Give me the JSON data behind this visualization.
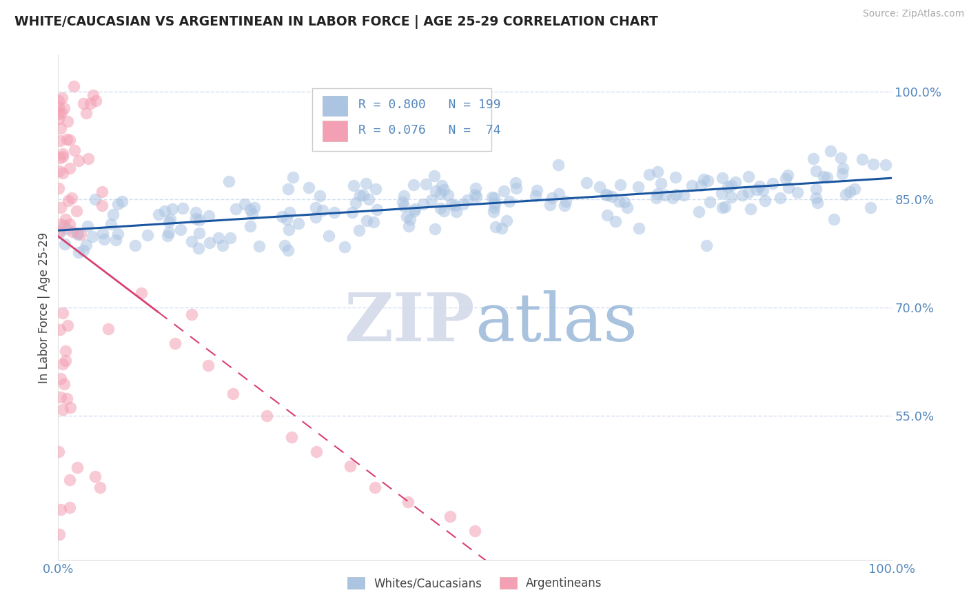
{
  "title": "WHITE/CAUCASIAN VS ARGENTINEAN IN LABOR FORCE | AGE 25-29 CORRELATION CHART",
  "source": "Source: ZipAtlas.com",
  "ylabel": "In Labor Force | Age 25-29",
  "xlim": [
    0.0,
    1.0
  ],
  "ylim": [
    0.35,
    1.05
  ],
  "yticks": [
    0.55,
    0.7,
    0.85,
    1.0
  ],
  "ytick_labels": [
    "55.0%",
    "70.0%",
    "85.0%",
    "100.0%"
  ],
  "xticks": [
    0.0,
    1.0
  ],
  "xtick_labels": [
    "0.0%",
    "100.0%"
  ],
  "blue_R": 0.8,
  "blue_N": 199,
  "pink_R": 0.076,
  "pink_N": 74,
  "blue_color": "#aac4e2",
  "pink_color": "#f4a0b4",
  "blue_line_color": "#1a55a0",
  "pink_line_color": "#d84070",
  "grid_color": "#c8d8ec",
  "axis_color": "#5588bb",
  "watermark_zip_color": "#d0d8e8",
  "watermark_atlas_color": "#9ab8d8",
  "legend_border_color": "#cccccc"
}
